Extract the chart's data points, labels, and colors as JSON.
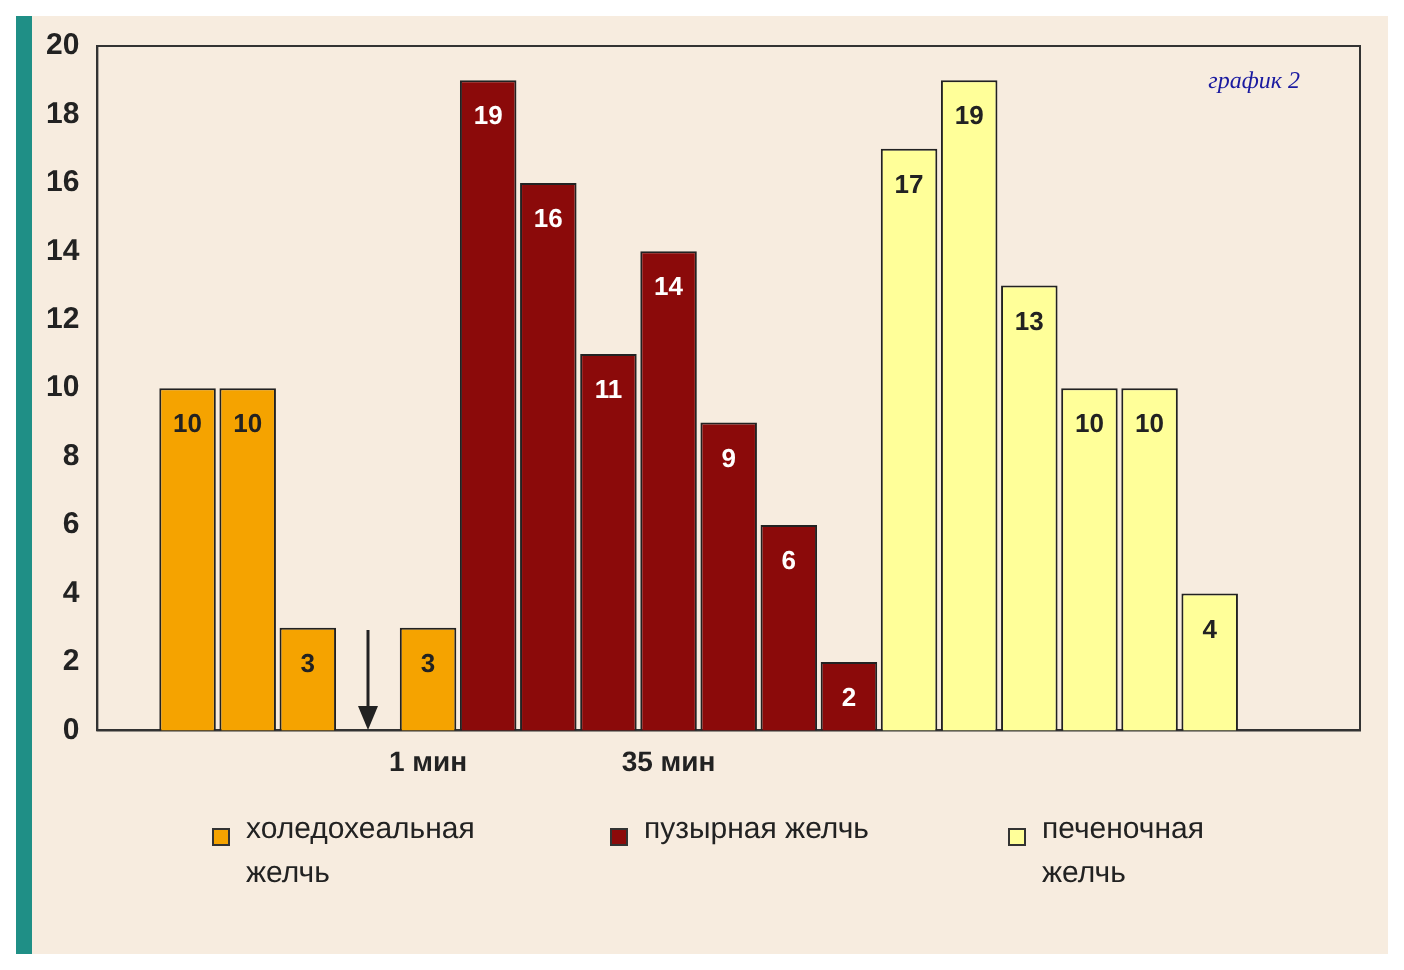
{
  "chart_data": {
    "type": "bar",
    "categories": [
      null,
      null,
      null,
      null,
      null,
      "1 мин",
      null,
      null,
      null,
      "35 мин",
      null,
      null,
      null,
      null,
      null,
      null,
      null,
      null,
      null,
      null,
      null
    ],
    "series": [
      {
        "name": "холедохеальная желчь",
        "color": "#f5a300",
        "values": [
          null,
          10,
          10,
          3,
          null,
          3,
          null,
          null,
          null,
          null,
          null,
          null,
          null,
          null,
          null,
          null,
          null,
          null,
          null,
          null,
          null
        ]
      },
      {
        "name": "пузырная желчь",
        "color": "#8b0a0a",
        "values": [
          null,
          null,
          null,
          null,
          null,
          null,
          19,
          16,
          11,
          14,
          9,
          6,
          2,
          null,
          null,
          null,
          null,
          null,
          null,
          null,
          null
        ]
      },
      {
        "name": "печеночная желчь",
        "color": "#ffff99",
        "values": [
          null,
          null,
          null,
          null,
          null,
          null,
          null,
          null,
          null,
          null,
          null,
          null,
          null,
          17,
          19,
          13,
          10,
          10,
          4,
          null,
          null
        ]
      }
    ],
    "ylim": [
      0,
      20
    ],
    "yticks": [
      0,
      2,
      4,
      6,
      8,
      10,
      12,
      14,
      16,
      18,
      20
    ],
    "grid": false,
    "legend": "bottom",
    "data_labels": true,
    "annotations": [
      "график 2"
    ]
  }
}
